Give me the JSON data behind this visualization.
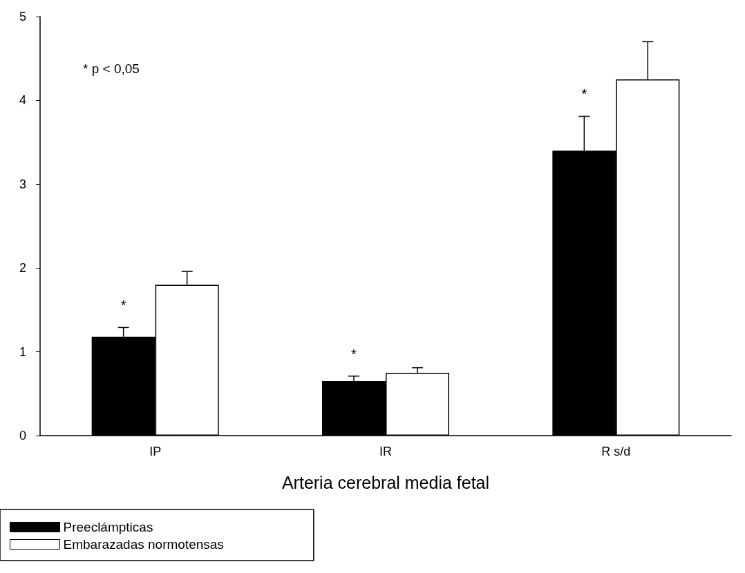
{
  "chart_data": {
    "type": "bar",
    "xlabel": "Arteria cerebral media fetal",
    "categories": [
      "IP",
      "IR",
      "R s/d"
    ],
    "series": [
      {
        "name": "Preeclámpticas",
        "color": "#000000",
        "values": [
          1.18,
          0.65,
          3.4
        ],
        "errors": [
          [
            1.18,
            1.29
          ],
          [
            0.65,
            0.71
          ],
          [
            3.4,
            3.81
          ]
        ]
      },
      {
        "name": "Embarazadas normotensas",
        "color": "#ffffff",
        "values": [
          1.8,
          0.75,
          4.25
        ],
        "errors": [
          [
            1.8,
            1.96
          ],
          [
            0.75,
            0.81
          ],
          [
            4.25,
            4.7
          ]
        ]
      }
    ],
    "ylim": [
      0,
      5
    ],
    "yticks": [
      0,
      1,
      2,
      3,
      4,
      5
    ],
    "grid": false,
    "legend": "bottom left",
    "annotations": [
      "* p < 0,05",
      {
        "text": "*",
        "x": "IP",
        "y": 1.29
      },
      {
        "text": "*",
        "x": "IR",
        "y": 0.71
      },
      {
        "text": "*",
        "x": "R s/d",
        "y": 3.81
      }
    ]
  }
}
